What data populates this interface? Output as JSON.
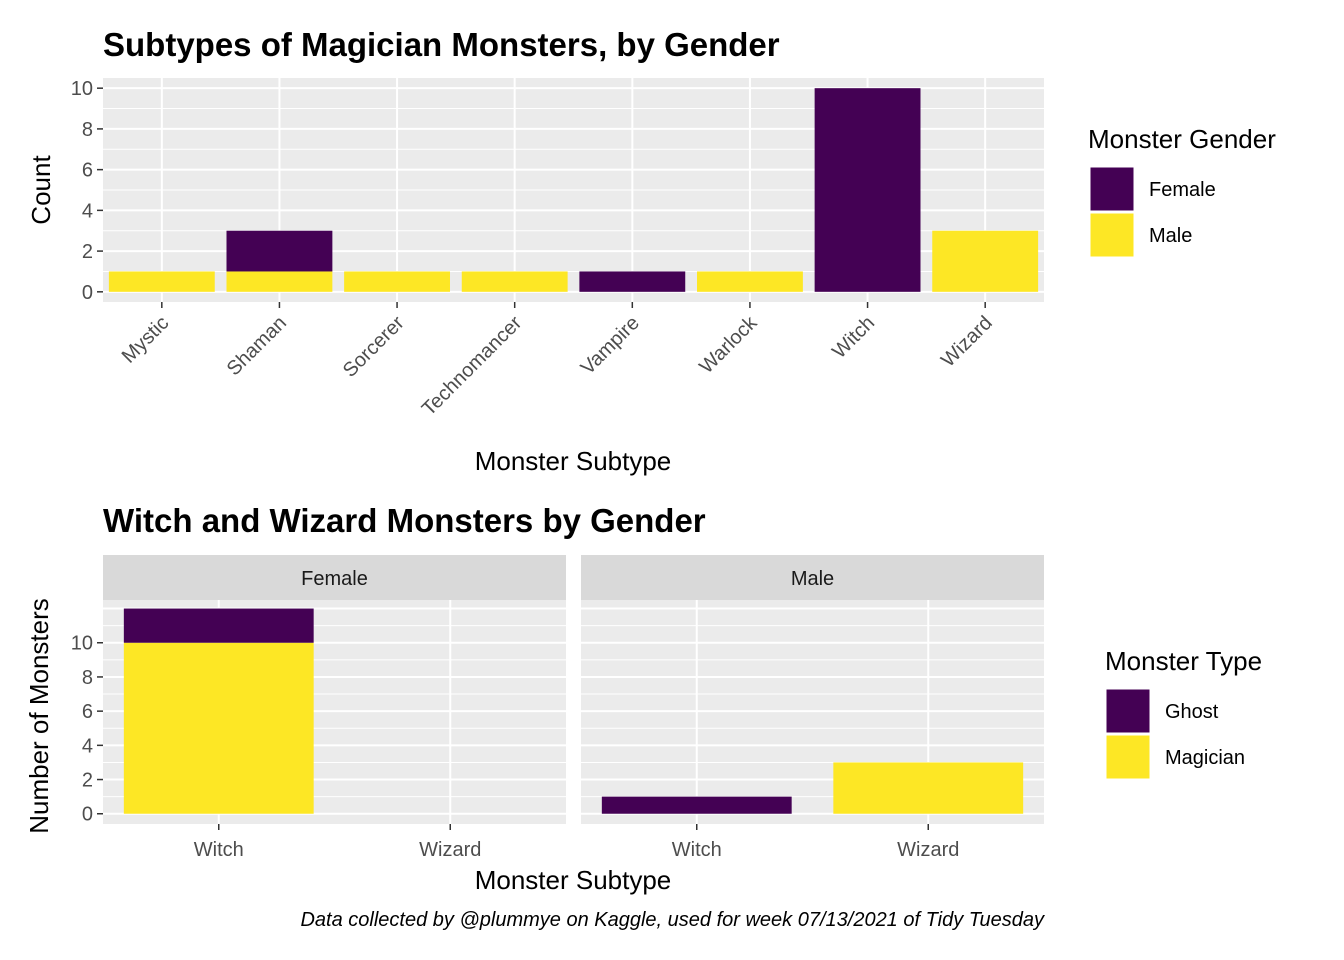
{
  "chart_data": [
    {
      "type": "bar",
      "stacked": true,
      "title": "Subtypes of Magician Monsters, by Gender",
      "xlabel": "Monster Subtype",
      "ylabel": "Count",
      "ylim": [
        0,
        10.5
      ],
      "yticks": [
        0,
        2,
        4,
        6,
        8,
        10
      ],
      "categories": [
        "Mystic",
        "Shaman",
        "Sorcerer",
        "Technomancer",
        "Vampire",
        "Warlock",
        "Witch",
        "Wizard"
      ],
      "series": [
        {
          "name": "Female",
          "color": "#440154",
          "values": [
            0,
            2,
            0,
            0,
            1,
            0,
            10,
            0
          ]
        },
        {
          "name": "Male",
          "color": "#FDE725",
          "values": [
            1,
            1,
            1,
            1,
            0,
            1,
            0,
            3
          ]
        }
      ],
      "legend": {
        "title": "Monster Gender",
        "position": "right"
      },
      "grid": true
    },
    {
      "type": "bar",
      "stacked": true,
      "faceted": true,
      "title": "Witch and Wizard Monsters by Gender",
      "xlabel": "Monster Subtype",
      "ylabel": "Number of Monsters",
      "ylim": [
        0,
        12.5
      ],
      "yticks": [
        0,
        2,
        4,
        6,
        8,
        10
      ],
      "categories": [
        "Witch",
        "Wizard"
      ],
      "facets": [
        {
          "name": "Female",
          "series": [
            {
              "name": "Ghost",
              "color": "#440154",
              "values": [
                2,
                0
              ]
            },
            {
              "name": "Magician",
              "color": "#FDE725",
              "values": [
                10,
                0
              ]
            }
          ]
        },
        {
          "name": "Male",
          "series": [
            {
              "name": "Ghost",
              "color": "#440154",
              "values": [
                1,
                0
              ]
            },
            {
              "name": "Magician",
              "color": "#FDE725",
              "values": [
                0,
                3
              ]
            }
          ]
        }
      ],
      "legend": {
        "title": "Monster Type",
        "position": "right"
      },
      "grid": true
    }
  ],
  "caption": "Data collected by @plummye on Kaggle, used for week 07/13/2021 of Tidy Tuesday"
}
